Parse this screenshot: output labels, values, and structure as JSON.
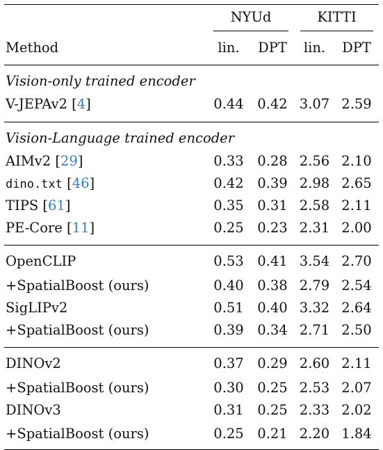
{
  "header": {
    "group_nyud": "NYUd",
    "group_kitti": "KITTI",
    "method_label": "Method",
    "sub_lin_1": "lin.",
    "sub_dpt_1": "DPT",
    "sub_lin_2": "lin.",
    "sub_dpt_2": "DPT"
  },
  "sections": [
    {
      "title": "Vision-only trained encoder",
      "rows": [
        {
          "method": "V-JEPAv2",
          "cite": "4",
          "v": [
            "0.44",
            "0.42",
            "3.07",
            "2.59"
          ]
        }
      ]
    },
    {
      "title": "Vision-Language trained encoder",
      "rows": [
        {
          "method": "AIMv2",
          "cite": "29",
          "v": [
            "0.33",
            "0.28",
            "2.56",
            "2.10"
          ]
        },
        {
          "method": "dino.txt",
          "cite": "46",
          "v": [
            "0.42",
            "0.39",
            "2.98",
            "2.65"
          ]
        },
        {
          "method": "TIPS",
          "cite": "61",
          "v": [
            "0.35",
            "0.31",
            "2.58",
            "2.11"
          ]
        },
        {
          "method": "PE-Core",
          "cite": "11",
          "v": [
            "0.25",
            "0.23",
            "2.31",
            "2.00"
          ]
        }
      ]
    }
  ],
  "blocks": [
    {
      "rows": [
        {
          "method": "OpenCLIP",
          "v": [
            "0.53",
            "0.41",
            "3.54",
            "2.70"
          ]
        },
        {
          "method": "+SpatialBoost (ours)",
          "v": [
            "0.40",
            "0.38",
            "2.79",
            "2.54"
          ]
        },
        {
          "method": "SigLIPv2",
          "v": [
            "0.51",
            "0.40",
            "3.32",
            "2.64"
          ]
        },
        {
          "method": "+SpatialBoost (ours)",
          "v": [
            "0.39",
            "0.34",
            "2.71",
            "2.50"
          ]
        }
      ]
    },
    {
      "rows": [
        {
          "method": "DINOv2",
          "v": [
            "0.37",
            "0.29",
            "2.60",
            "2.11"
          ]
        },
        {
          "method": "+SpatialBoost (ours)",
          "v": [
            "0.30",
            "0.25",
            "2.53",
            "2.07"
          ]
        },
        {
          "method": "DINOv3",
          "v": [
            "0.31",
            "0.25",
            "2.33",
            "2.02"
          ]
        },
        {
          "method": "+SpatialBoost (ours)",
          "v": [
            "0.25",
            "0.21",
            "2.20",
            "1.84"
          ]
        }
      ]
    }
  ]
}
